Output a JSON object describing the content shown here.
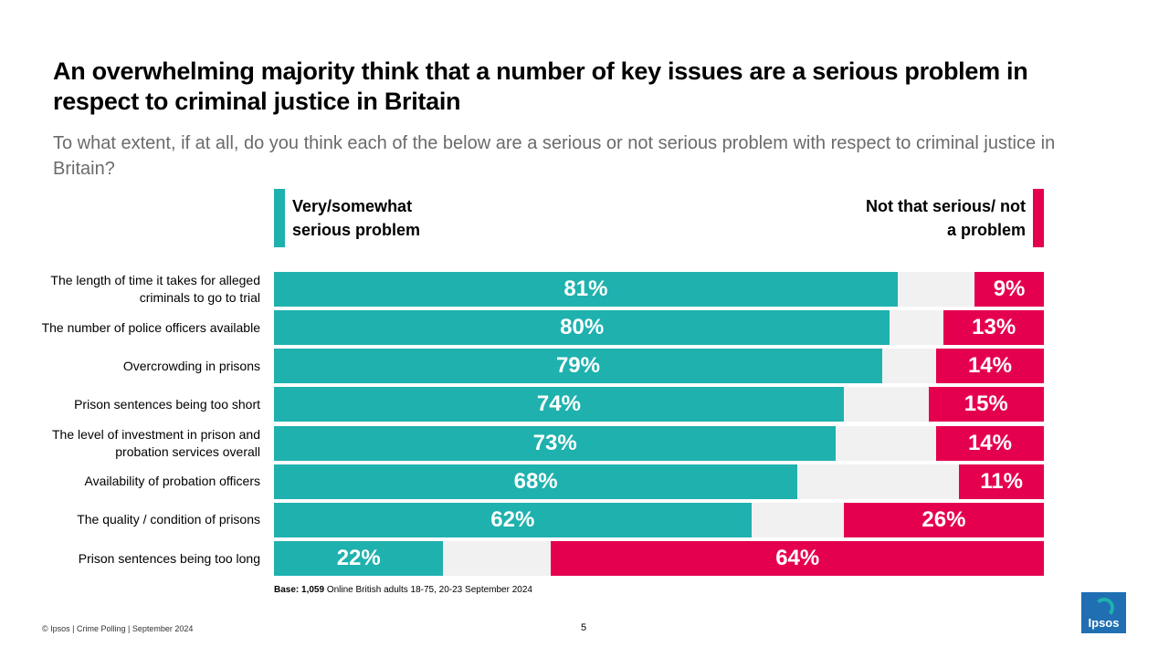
{
  "title": "An overwhelming majority think that a number of key issues are a serious problem in respect to criminal justice in Britain",
  "subtitle": "To what extent, if at all, do you think each of the below are a serious or not serious problem with respect to criminal justice in Britain?",
  "legend": {
    "left": "Very/somewhat serious problem",
    "right": "Not that serious/ not a problem"
  },
  "base": {
    "prefix": "Base: 1,059",
    "text": " Online British adults 18-75, 20-23 September 2024"
  },
  "footer": {
    "left": "© Ipsos | Crime Polling | September 2024",
    "page": "5"
  },
  "logo_text": "Ipsos",
  "colors": {
    "serious": "#1fb1ae",
    "not_serious": "#e5004f",
    "dont_know": "#f1f1f1"
  },
  "chart_data": {
    "type": "bar",
    "orientation": "horizontal",
    "stacked": true,
    "xlim": [
      0,
      100
    ],
    "categories": [
      "The length of time it takes for alleged criminals to go to trial",
      "The number of police officers available",
      "Overcrowding in prisons",
      "Prison sentences being too short",
      "The level of investment in prison and probation services overall",
      "Availability of probation officers",
      "The quality / condition of prisons",
      "Prison sentences being too long"
    ],
    "series": [
      {
        "name": "Very/somewhat serious problem",
        "values": [
          81,
          80,
          79,
          74,
          73,
          68,
          62,
          22
        ]
      },
      {
        "name": "Not that serious/ not a problem",
        "values": [
          9,
          13,
          14,
          15,
          14,
          11,
          26,
          64
        ]
      }
    ]
  }
}
